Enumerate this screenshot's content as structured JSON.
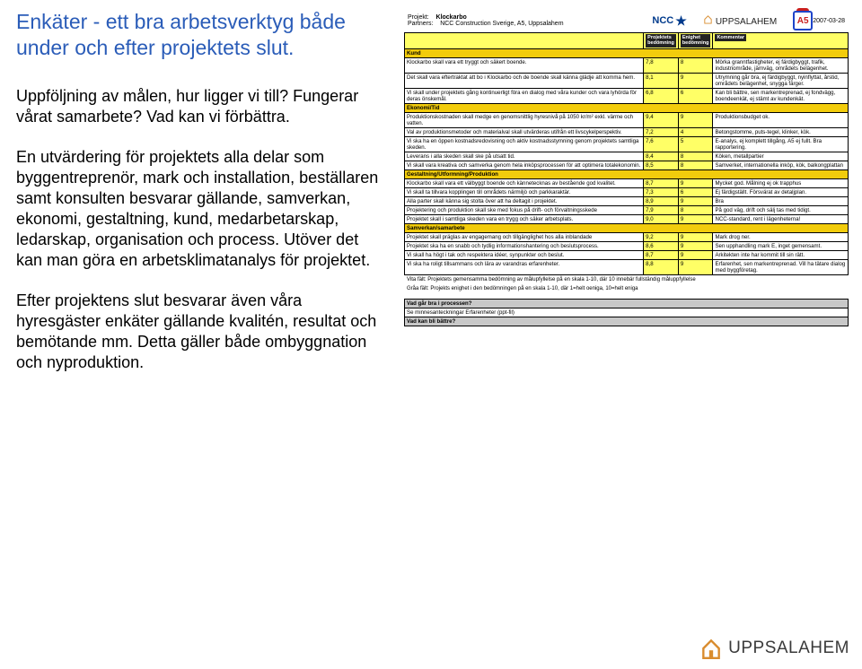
{
  "left": {
    "heading": "Enkäter  - ett bra arbetsverktyg både under och efter projektets slut.",
    "p1": "Uppföljning av målen, hur ligger vi till? Fungerar vårat samarbete? Vad kan vi förbättra.",
    "p2": "En utvärdering för projektets alla delar som byggentreprenör, mark och installation, beställaren samt konsulten besvarar gällande, samverkan, ekonomi, gestaltning, kund, medarbetarskap, ledarskap, organisation och process. Utöver det kan man göra en arbetsklimatanalys för projektet.",
    "p3": "Efter projektens slut besvarar även våra hyresgäster enkäter gällande kvalitén, resultat och bemötande mm. Detta gäller både ombyggnation och nyproduktion."
  },
  "doc_header": {
    "projekt_label": "Projekt:",
    "projekt_value": "Klockarbo",
    "partners_label": "Partners:",
    "partners_value": "NCC Construction Sverige, A5, Uppsalahem",
    "date": "2007-03-28",
    "ncc": "NCC",
    "uppsalahem": "UPPSALAHEM",
    "a5": "A5"
  },
  "col_headers": {
    "c1": "Projektets bedömning",
    "c2": "Enighet bedömning",
    "c3": "Kommentar"
  },
  "sections": [
    {
      "title": "Kund",
      "rows": [
        {
          "text": "Klockarbo skall vara ett tryggt och säkert boende.",
          "v1": "7,8",
          "v2": "8",
          "comment": "Mörka granntfastigheter, ej färdigbyggt, trafik, industriområde, järnväg, områdets belägenhet."
        },
        {
          "text": "Det skall vara eftertraktat att bo i Klockarbo och de boende skall känna glädje att komma hem.",
          "v1": "8,1",
          "v2": "9",
          "comment": "Utrymning går bra, ej färdigbyggt, nyinflyttat, årstid, områdets belägenhet, snygga färger."
        },
        {
          "text": "Vi skall under projektets gång kontinuerligt föra en dialog med våra kunder och vara lyhörda för deras önskemål.",
          "v1": "6,8",
          "v2": "6",
          "comment": "Kan bli bättre, sen markentreprenad, ej fondvägg, boendeenkät, ej stämt av kundenkät."
        }
      ]
    },
    {
      "title": "Ekonomi/Tid",
      "rows": [
        {
          "text": "Produktionskostnaden skall medge en genomsnittlig hyresnivå på 1050 kr/m² exkl. värme och vatten.",
          "v1": "9,4",
          "v2": "9",
          "comment": "Produktionsbudget ok."
        },
        {
          "text": "Val av produktionsmetoder och materialval skall utvärderas utifrån ett livscykelperspektiv.",
          "v1": "7,2",
          "v2": "4",
          "comment": "Betongstomme, puts-tegel, klinker, kök."
        },
        {
          "text": "Vi ska ha en öppen kostnadsredovisning och aktiv kostnadsstymning genom projektets samtliga skeden.",
          "v1": "7,6",
          "v2": "5",
          "comment": "E-analys, ej komplett tillgång, A5 ej fullt. Bra rapportering."
        },
        {
          "text": "Leverans i alla skeden skall ske på utsatt tid.",
          "v1": "8,4",
          "v2": "8",
          "comment": "Köken, metallpartier"
        },
        {
          "text": "Vi skall vara kreativa och samverka genom hela inköpsprocessen för att optimera totalekonomin.",
          "v1": "8,5",
          "v2": "8",
          "comment": "Samverket, internationella inköp, kök, balkongplattan"
        }
      ]
    },
    {
      "title": "Gestaltning/Utformning/Produktion",
      "rows": [
        {
          "text": "Klockarbo skall vara ett välbyggt boende och kännetecknas av bestående god kvalitet.",
          "v1": "8,7",
          "v2": "9",
          "comment": "Mycket god. Målning ej ok trapphus"
        },
        {
          "text": "Vi skall ta tillvara kopplingen till områdets närmiljö och parkkaraktär.",
          "v1": "7,3",
          "v2": "6",
          "comment": "Ej färdigställt. Försvärat av detaljplan."
        },
        {
          "text": "Alla parter skall känna sig stolta över att ha deltagit i projektet.",
          "v1": "8,9",
          "v2": "9",
          "comment": "Bra"
        },
        {
          "text": "Projektering och produktion skall ske med fokus på drift- och förvaltningsskede",
          "v1": "7,9",
          "v2": "8",
          "comment": "På god väg, drift och sälj tas med tidigt."
        },
        {
          "text": "Projektet skall i samtliga skeden vara en trygg och säker arbetsplats.",
          "v1": "9,0",
          "v2": "9",
          "comment": "NCC-standard, rent i lägenheterna!"
        }
      ]
    },
    {
      "title": "Samverkan/samarbete",
      "rows": [
        {
          "text": "Projektet skall präglas av engagemang och tillgänglighet hos alla inblandade",
          "v1": "9,2",
          "v2": "9",
          "comment": "Mark drog ner."
        },
        {
          "text": "Projektet ska ha en snabb och tydlig informationshantering och beslutsprocess.",
          "v1": "8,6",
          "v2": "9",
          "comment": "Sen upphandling mark E, inget gemensamt."
        },
        {
          "text": "Vi skall ha högt i tak och respektera idéer, synpunkter och beslut.",
          "v1": "8,7",
          "v2": "9",
          "comment": "Arkitekten inte har kommit till sin rätt."
        },
        {
          "text": "Vi ska ha roligt tillsammans och lära av varandras erfarenheter.",
          "v1": "8,8",
          "v2": "9",
          "comment": "Erfarenhet, sen markentreprenad. Vill ha tätare dialog med byggföretag."
        }
      ]
    }
  ],
  "footnotes": {
    "f1": "Vita fält: Projektets gemensamma bedömning av målupfyllelse på en skala 1-10, där 10 innebär fullständig måluppfyllelse",
    "f2": "Gråa fält: Projekts enighet i den bedömningen på en skala 1-10, där 1=helt oeniga, 10=helt eniga"
  },
  "grey_questions": {
    "q1": "Vad går bra i processen?",
    "q1_ans": "Se minnesanteckningar Erfarenheter (ppt-fil)",
    "q2": "Vad kan bli bättre?"
  },
  "footer": {
    "brand": "UPPSALAHEM"
  },
  "colors": {
    "heading": "#2a5cb8",
    "section": "#f2cc0c",
    "header_row": "#ffff66",
    "grey": "#c8c8c8"
  }
}
